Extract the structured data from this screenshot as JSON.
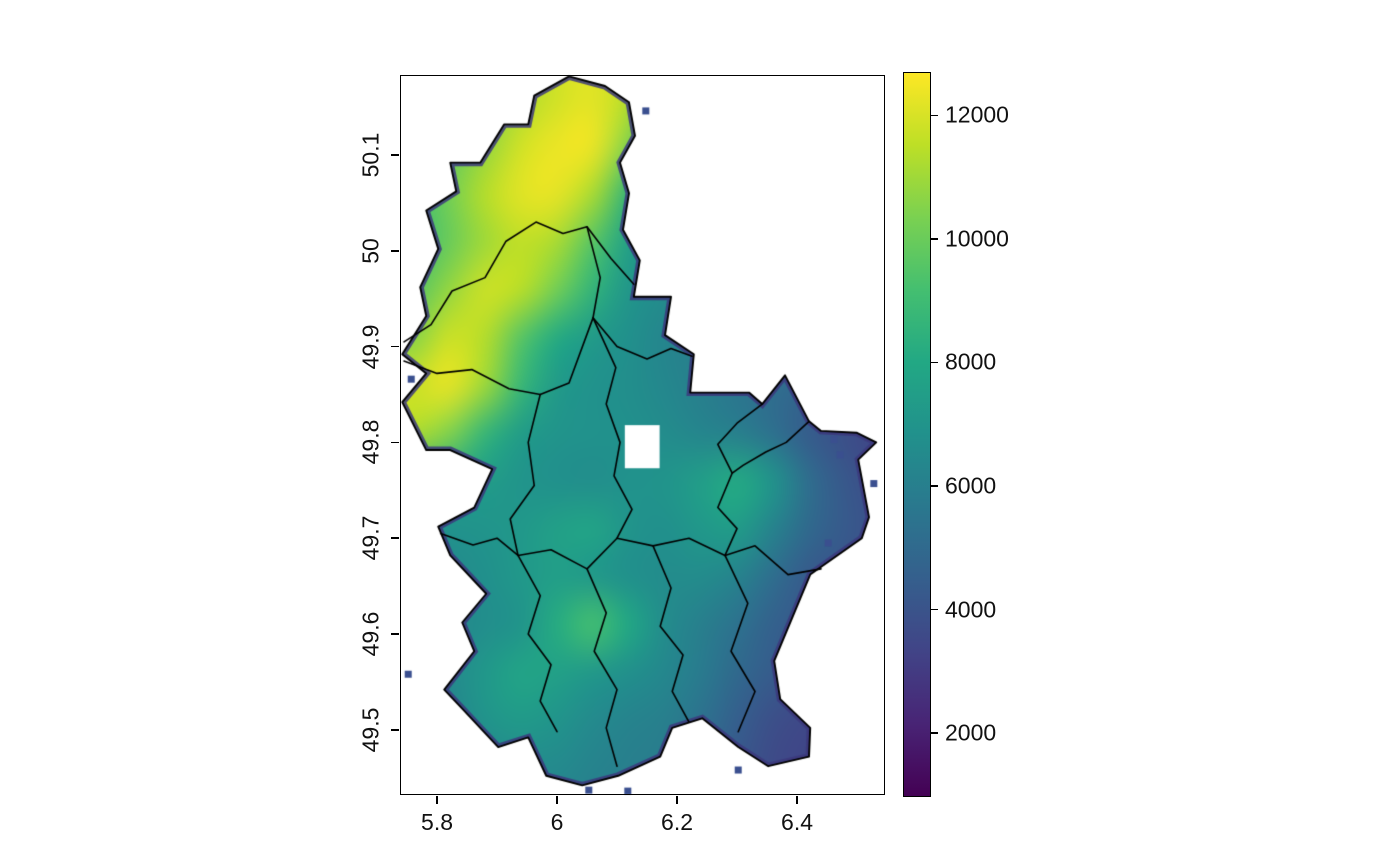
{
  "figure": {
    "background": "#ffffff"
  },
  "axes": {
    "x_ticks": [
      {
        "value": 5.8,
        "label": "5.8"
      },
      {
        "value": 6.0,
        "label": "6"
      },
      {
        "value": 6.2,
        "label": "6.2"
      },
      {
        "value": 6.4,
        "label": "6.4"
      }
    ],
    "y_ticks": [
      {
        "value": 50.1,
        "label": "50.1"
      },
      {
        "value": 50.0,
        "label": "50"
      },
      {
        "value": 49.9,
        "label": "49.9"
      },
      {
        "value": 49.8,
        "label": "49.8"
      },
      {
        "value": 49.7,
        "label": "49.7"
      },
      {
        "value": 49.6,
        "label": "49.6"
      },
      {
        "value": 49.5,
        "label": "49.5"
      }
    ]
  },
  "colorbar": {
    "palette": "viridis",
    "domain": [
      1000,
      12700
    ],
    "ticks": [
      {
        "value": 2000,
        "label": "2000"
      },
      {
        "value": 4000,
        "label": "4000"
      },
      {
        "value": 6000,
        "label": "6000"
      },
      {
        "value": 8000,
        "label": "8000"
      },
      {
        "value": 10000,
        "label": "10000"
      },
      {
        "value": 12000,
        "label": "12000"
      }
    ],
    "stops": [
      [
        0.0,
        "#440154"
      ],
      [
        0.1,
        "#482475"
      ],
      [
        0.2,
        "#414487"
      ],
      [
        0.3,
        "#355f8d"
      ],
      [
        0.4,
        "#2a788e"
      ],
      [
        0.5,
        "#21918c"
      ],
      [
        0.6,
        "#22a884"
      ],
      [
        0.7,
        "#44bf70"
      ],
      [
        0.8,
        "#7ad151"
      ],
      [
        0.9,
        "#bddf26"
      ],
      [
        1.0,
        "#fde725"
      ]
    ]
  },
  "chart_data": {
    "type": "heatmap",
    "region": "Luxembourg",
    "xlim": [
      5.738,
      6.547
    ],
    "ylim": [
      49.432,
      50.184
    ],
    "grid": {
      "lon0": 5.76,
      "dlon": 0.06,
      "lat0": 50.16,
      "dlat": -0.05,
      "ncol": 14,
      "nrow": 16,
      "values": [
        [
          9000,
          9500,
          10200,
          11200,
          11900,
          12200,
          11400,
          9000,
          8000,
          7500,
          7000,
          7000,
          7000,
          7000
        ],
        [
          9000,
          9800,
          10800,
          11900,
          12400,
          12400,
          10500,
          6800,
          5600,
          5200,
          5000,
          5000,
          5000,
          5000
        ],
        [
          9200,
          10200,
          11400,
          12200,
          12300,
          11200,
          8600,
          6600,
          5600,
          5400,
          5200,
          5200,
          5200,
          5200
        ],
        [
          9000,
          10000,
          11000,
          11600,
          11200,
          9600,
          7600,
          6600,
          6000,
          5800,
          5600,
          5600,
          5600,
          5600
        ],
        [
          9600,
          10800,
          11800,
          11500,
          10200,
          8600,
          7100,
          6600,
          6200,
          6000,
          5800,
          5800,
          5800,
          5800
        ],
        [
          10600,
          11800,
          11400,
          9600,
          8100,
          7300,
          6800,
          6300,
          6000,
          5900,
          5800,
          5600,
          5400,
          5200
        ],
        [
          11800,
          12300,
          11000,
          8800,
          7300,
          6900,
          6700,
          6400,
          6000,
          5600,
          5200,
          4800,
          4400,
          4200
        ],
        [
          11300,
          10500,
          8700,
          7400,
          7000,
          6900,
          6800,
          6600,
          6300,
          6000,
          5300,
          4400,
          3800,
          3400
        ],
        [
          7800,
          7600,
          7400,
          7000,
          6800,
          6700,
          6900,
          7000,
          7500,
          8100,
          7000,
          5200,
          4200,
          3700
        ],
        [
          6800,
          6900,
          7000,
          7200,
          7600,
          7800,
          7000,
          6800,
          7200,
          7400,
          6200,
          5000,
          4300,
          3900
        ],
        [
          6300,
          6500,
          6800,
          7200,
          7500,
          7200,
          6800,
          6600,
          6600,
          6200,
          5200,
          4300,
          4000,
          3800
        ],
        [
          6200,
          6400,
          6700,
          7000,
          8200,
          9200,
          8000,
          6600,
          6000,
          5400,
          4600,
          4200,
          3900,
          3700
        ],
        [
          6000,
          6500,
          7200,
          7800,
          7600,
          7200,
          6800,
          6400,
          5800,
          5000,
          4400,
          4000,
          3800,
          3600
        ],
        [
          5500,
          6200,
          7000,
          7300,
          7000,
          6500,
          6200,
          6000,
          5400,
          4500,
          3800,
          3500,
          3400,
          3300
        ],
        [
          5000,
          5500,
          6200,
          6500,
          6500,
          6200,
          6000,
          5800,
          5000,
          4200,
          3600,
          3400,
          3300,
          3200
        ],
        [
          5000,
          5500,
          6000,
          6200,
          6200,
          6000,
          5800,
          5500,
          5000,
          4200,
          3500,
          3400,
          3300,
          3200
        ]
      ]
    },
    "na_hole": {
      "lon": [
        6.113,
        6.171
      ],
      "lat": [
        49.773,
        49.818
      ]
    },
    "outline": [
      [
        6.02,
        50.182
      ],
      [
        6.08,
        50.172
      ],
      [
        6.12,
        50.155
      ],
      [
        6.13,
        50.12
      ],
      [
        6.105,
        50.092
      ],
      [
        6.12,
        50.06
      ],
      [
        6.11,
        50.022
      ],
      [
        6.138,
        49.99
      ],
      [
        6.128,
        49.952
      ],
      [
        6.19,
        49.952
      ],
      [
        6.18,
        49.912
      ],
      [
        6.228,
        49.892
      ],
      [
        6.222,
        49.852
      ],
      [
        6.32,
        49.852
      ],
      [
        6.342,
        49.84
      ],
      [
        6.38,
        49.87
      ],
      [
        6.42,
        49.822
      ],
      [
        6.44,
        49.812
      ],
      [
        6.5,
        49.81
      ],
      [
        6.532,
        49.8
      ],
      [
        6.502,
        49.782
      ],
      [
        6.52,
        49.722
      ],
      [
        6.508,
        49.7
      ],
      [
        6.422,
        49.662
      ],
      [
        6.382,
        49.602
      ],
      [
        6.362,
        49.572
      ],
      [
        6.372,
        49.532
      ],
      [
        6.422,
        49.502
      ],
      [
        6.42,
        49.472
      ],
      [
        6.352,
        49.462
      ],
      [
        6.302,
        49.482
      ],
      [
        6.242,
        49.512
      ],
      [
        6.192,
        49.502
      ],
      [
        6.172,
        49.472
      ],
      [
        6.102,
        49.452
      ],
      [
        6.042,
        49.442
      ],
      [
        5.982,
        49.452
      ],
      [
        5.952,
        49.492
      ],
      [
        5.902,
        49.482
      ],
      [
        5.842,
        49.522
      ],
      [
        5.812,
        49.542
      ],
      [
        5.862,
        49.582
      ],
      [
        5.842,
        49.612
      ],
      [
        5.882,
        49.642
      ],
      [
        5.822,
        49.682
      ],
      [
        5.802,
        49.712
      ],
      [
        5.862,
        49.732
      ],
      [
        5.892,
        49.772
      ],
      [
        5.822,
        49.792
      ],
      [
        5.782,
        49.792
      ],
      [
        5.742,
        49.842
      ],
      [
        5.782,
        49.872
      ],
      [
        5.742,
        49.892
      ],
      [
        5.782,
        49.932
      ],
      [
        5.772,
        49.962
      ],
      [
        5.802,
        50.002
      ],
      [
        5.782,
        50.042
      ],
      [
        5.832,
        50.062
      ],
      [
        5.822,
        50.092
      ],
      [
        5.872,
        50.092
      ],
      [
        5.912,
        50.132
      ],
      [
        5.952,
        50.132
      ],
      [
        5.962,
        50.162
      ]
    ],
    "boundaries": [
      [
        [
          5.745,
          49.905
        ],
        [
          5.79,
          49.923
        ],
        [
          5.825,
          49.958
        ],
        [
          5.88,
          49.972
        ],
        [
          5.915,
          50.01
        ],
        [
          5.965,
          50.03
        ],
        [
          6.01,
          50.018
        ],
        [
          6.05,
          50.025
        ],
        [
          6.09,
          49.992
        ],
        [
          6.128,
          49.965
        ]
      ],
      [
        [
          6.05,
          50.025
        ],
        [
          6.072,
          49.972
        ],
        [
          6.06,
          49.93
        ],
        [
          6.1,
          49.9
        ],
        [
          6.15,
          49.887
        ],
        [
          6.19,
          49.898
        ],
        [
          6.225,
          49.89
        ]
      ],
      [
        [
          5.745,
          49.885
        ],
        [
          5.8,
          49.872
        ],
        [
          5.858,
          49.876
        ],
        [
          5.92,
          49.856
        ],
        [
          5.972,
          49.85
        ],
        [
          6.02,
          49.862
        ],
        [
          6.06,
          49.93
        ]
      ],
      [
        [
          5.972,
          49.85
        ],
        [
          5.952,
          49.8
        ],
        [
          5.962,
          49.755
        ],
        [
          5.922,
          49.72
        ],
        [
          5.935,
          49.682
        ]
      ],
      [
        [
          6.06,
          49.93
        ],
        [
          6.098,
          49.878
        ],
        [
          6.082,
          49.84
        ],
        [
          6.105,
          49.8
        ],
        [
          6.095,
          49.765
        ],
        [
          6.125,
          49.73
        ],
        [
          6.1,
          49.7
        ]
      ],
      [
        [
          5.806,
          49.705
        ],
        [
          5.86,
          49.693
        ],
        [
          5.9,
          49.7
        ],
        [
          5.935,
          49.682
        ],
        [
          5.99,
          49.688
        ],
        [
          6.05,
          49.668
        ],
        [
          6.1,
          49.7
        ],
        [
          6.16,
          49.692
        ],
        [
          6.22,
          49.7
        ],
        [
          6.28,
          49.682
        ],
        [
          6.33,
          49.692
        ],
        [
          6.385,
          49.662
        ],
        [
          6.44,
          49.668
        ]
      ],
      [
        [
          6.342,
          49.84
        ],
        [
          6.3,
          49.82
        ],
        [
          6.268,
          49.798
        ],
        [
          6.292,
          49.768
        ],
        [
          6.268,
          49.732
        ],
        [
          6.3,
          49.71
        ],
        [
          6.28,
          49.682
        ]
      ],
      [
        [
          5.935,
          49.682
        ],
        [
          5.972,
          49.64
        ],
        [
          5.952,
          49.6
        ],
        [
          5.99,
          49.568
        ],
        [
          5.972,
          49.53
        ],
        [
          6.0,
          49.498
        ]
      ],
      [
        [
          6.16,
          49.692
        ],
        [
          6.19,
          49.648
        ],
        [
          6.172,
          49.608
        ],
        [
          6.21,
          49.578
        ],
        [
          6.192,
          49.54
        ],
        [
          6.22,
          49.508
        ]
      ],
      [
        [
          6.05,
          49.668
        ],
        [
          6.082,
          49.622
        ],
        [
          6.062,
          49.582
        ],
        [
          6.1,
          49.542
        ],
        [
          6.082,
          49.502
        ],
        [
          6.1,
          49.462
        ]
      ],
      [
        [
          6.28,
          49.682
        ],
        [
          6.318,
          49.632
        ],
        [
          6.29,
          49.582
        ],
        [
          6.33,
          49.54
        ],
        [
          6.302,
          49.498
        ]
      ],
      [
        [
          6.42,
          49.822
        ],
        [
          6.382,
          49.8
        ],
        [
          6.348,
          49.79
        ],
        [
          6.31,
          49.776
        ],
        [
          6.292,
          49.768
        ]
      ]
    ],
    "stray_cells": [
      [
        6.462,
        49.803
      ],
      [
        6.472,
        49.787
      ],
      [
        6.528,
        49.757
      ],
      [
        6.118,
        49.436
      ],
      [
        6.053,
        49.437
      ],
      [
        5.752,
        49.558
      ],
      [
        5.757,
        49.866
      ],
      [
        6.148,
        50.146
      ],
      [
        6.302,
        49.458
      ],
      [
        6.452,
        49.695
      ]
    ]
  }
}
